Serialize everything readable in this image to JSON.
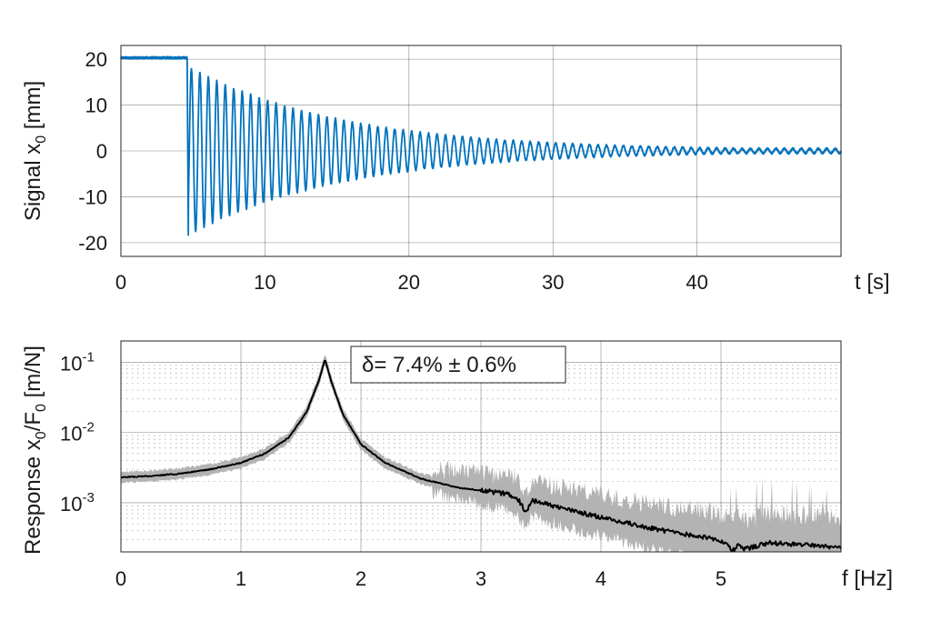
{
  "chart_data": [
    {
      "type": "line",
      "ylabel": "Signal  x",
      "ylabel_sub": "0",
      "ylabel_unit": " [mm]",
      "xlabel": "t [s]",
      "xlim": [
        0,
        50
      ],
      "ylim": [
        -23,
        23
      ],
      "xticks": [
        0,
        10,
        20,
        30,
        40
      ],
      "yticks": [
        20,
        10,
        0,
        -10,
        -20
      ],
      "grid": true,
      "color": "#0072BD",
      "series": [
        {
          "description_free": true,
          "baseline_before_release": 20.3,
          "release_time": 4.6,
          "oscillation_frequency_hz": 1.7,
          "initial_amplitude": 18.5,
          "damping_rate": 0.094,
          "end_time": 50,
          "end_amplitude": 0.5
        }
      ]
    },
    {
      "type": "line",
      "ylabel": "Response  x",
      "ylabel_sub1": "0",
      "ylabel_mid": "/F",
      "ylabel_sub2": "0",
      "ylabel_unit": " [m/N]",
      "xlabel": "f [Hz]",
      "xlim": [
        0,
        6
      ],
      "ylim": [
        0.0002,
        0.2
      ],
      "yscale": "log",
      "xticks": [
        0,
        1,
        2,
        3,
        4,
        5
      ],
      "yticks": [
        0.1,
        0.01,
        0.001
      ],
      "ytick_labels": [
        {
          "base": "10",
          "exp": "-1"
        },
        {
          "base": "10",
          "exp": "-2"
        },
        {
          "base": "10",
          "exp": "-3"
        }
      ],
      "grid": true,
      "minor_grid": true,
      "annotation": "δ= 7.4% ± 0.6%",
      "series": [
        {
          "role": "mean",
          "color": "#000000",
          "x": [
            0,
            0.25,
            0.5,
            0.75,
            1.0,
            1.2,
            1.4,
            1.55,
            1.65,
            1.7,
            1.75,
            1.85,
            2.0,
            2.2,
            2.5,
            2.8,
            3.0,
            3.2,
            3.3,
            3.38,
            3.42,
            3.5,
            3.7,
            4.0,
            4.3,
            4.6,
            4.9,
            5.0,
            5.05,
            5.1,
            5.15,
            5.2,
            5.4,
            5.7,
            6.0
          ],
          "y": [
            0.0023,
            0.0024,
            0.0026,
            0.003,
            0.0037,
            0.005,
            0.0085,
            0.02,
            0.055,
            0.11,
            0.055,
            0.018,
            0.0068,
            0.0037,
            0.0022,
            0.00165,
            0.0015,
            0.00135,
            0.0012,
            0.0007,
            0.0011,
            0.001,
            0.00082,
            0.00062,
            0.00048,
            0.00038,
            0.00032,
            0.00028,
            0.00025,
            0.00021,
            0.00026,
            0.00022,
            0.00027,
            0.00025,
            0.00023
          ]
        },
        {
          "role": "band",
          "color": "#b3b3b3",
          "spread_factor_low_freq": 1.15,
          "spread_factor_high_freq": 1.9
        }
      ]
    }
  ]
}
